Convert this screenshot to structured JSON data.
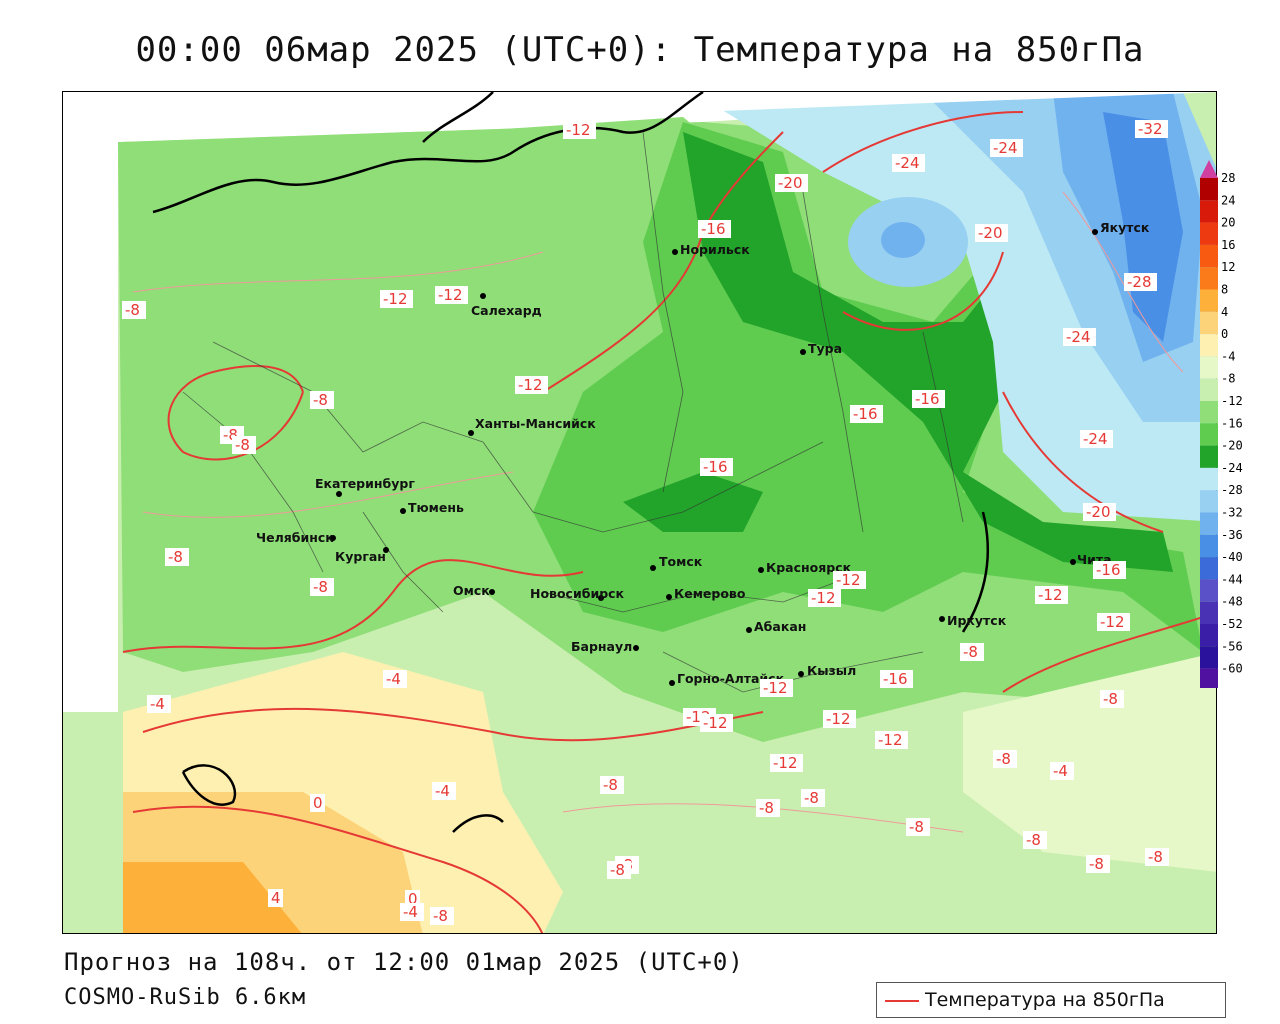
{
  "title": "00:00 06мар 2025 (UTC+0): Температура на 850гПа",
  "footer": {
    "forecast": "Прогноз на 108ч. от 12:00 01мар 2025 (UTC+0)",
    "model": "COSMO-RuSib 6.6км"
  },
  "legend": {
    "label": "Температура на 850гПа",
    "line_color": "#e53935"
  },
  "scale": {
    "labels": [
      "28",
      "24",
      "20",
      "16",
      "12",
      "8",
      "4",
      "0",
      "-4",
      "-8",
      "-12",
      "-16",
      "-20",
      "-24",
      "-28",
      "-32",
      "-36",
      "-40",
      "-44",
      "-48",
      "-52",
      "-56",
      "-60"
    ],
    "colors": [
      "#b00000",
      "#d81a0a",
      "#ee3a10",
      "#f75a10",
      "#fb7a1a",
      "#fdb03a",
      "#fdd37a",
      "#fdf0b0",
      "#e6f7c8",
      "#c9efb0",
      "#8fde78",
      "#5fcc50",
      "#22a32a",
      "#bde9f4",
      "#98d0f2",
      "#70b2ee",
      "#4a8fe6",
      "#3a6bd8",
      "#5a50c8",
      "#4a32b4",
      "#3a1ea8",
      "#2a129c",
      "#5010a0"
    ],
    "top_arrow_color": "#d040a0",
    "bottom_arrow_color": "#9030c0"
  },
  "cities": [
    {
      "name": "Салехард"
    },
    {
      "name": "Норильск"
    },
    {
      "name": "Тура"
    },
    {
      "name": "Якутск"
    },
    {
      "name": "Ханты-Мансийск"
    },
    {
      "name": "Екатеринбург"
    },
    {
      "name": "Тюмень"
    },
    {
      "name": "Челябинск"
    },
    {
      "name": "Курган"
    },
    {
      "name": "Омск"
    },
    {
      "name": "Новосибирск"
    },
    {
      "name": "Томск"
    },
    {
      "name": "Кемерово"
    },
    {
      "name": "Красноярск"
    },
    {
      "name": "Барнаул"
    },
    {
      "name": "Абакан"
    },
    {
      "name": "Горно-Алтайск"
    },
    {
      "name": "Кызыл"
    },
    {
      "name": "Иркутск"
    },
    {
      "name": "Чита"
    }
  ],
  "contour_labels": [
    "-12",
    "-12",
    "-12",
    "-8",
    "-8",
    "-8",
    "-8",
    "-8",
    "-12",
    "-16",
    "-20",
    "-24",
    "-24",
    "-20",
    "-32",
    "-28",
    "-24",
    "-24",
    "-24",
    "-20",
    "-16",
    "-16",
    "-16",
    "-16",
    "-12",
    "-12",
    "-12",
    "-12",
    "-12",
    "-4",
    "-4",
    "-4",
    "0",
    "4",
    "0",
    "-4",
    "-8",
    "-8",
    "-8",
    "-8",
    "-8",
    "-8",
    "-8",
    "-12",
    "-12",
    "-12",
    "-12",
    "-12",
    "-16",
    "-8",
    "-8",
    "-4",
    "-8",
    "-8",
    "-8",
    "-8",
    "-8"
  ]
}
